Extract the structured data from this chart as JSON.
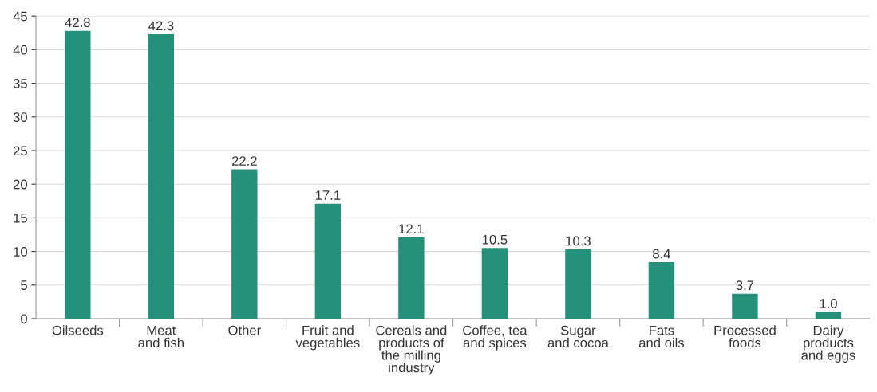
{
  "chart_data": {
    "type": "bar",
    "categories": [
      "Oilseeds",
      "Meat\nand fish",
      "Other",
      "Fruit and\nvegetables",
      "Cereals and\nproducts of\nthe milling\nindustry",
      "Coffee, tea\nand spices",
      "Sugar\nand cocoa",
      "Fats\nand oils",
      "Processed\nfoods",
      "Dairy\nproducts\nand eggs"
    ],
    "values": [
      42.8,
      42.3,
      22.2,
      17.1,
      12.1,
      10.5,
      10.3,
      8.4,
      3.7,
      1.0
    ],
    "value_labels": [
      "42.8",
      "42.3",
      "22.2",
      "17.1",
      "12.1",
      "10.5",
      "10.3",
      "8.4",
      "3.7",
      "1.0"
    ],
    "color": "#26917a",
    "ylim": [
      0,
      45
    ],
    "yticks": [
      0,
      5,
      10,
      15,
      20,
      25,
      30,
      35,
      40,
      45
    ],
    "grid": "y",
    "legend": false
  }
}
